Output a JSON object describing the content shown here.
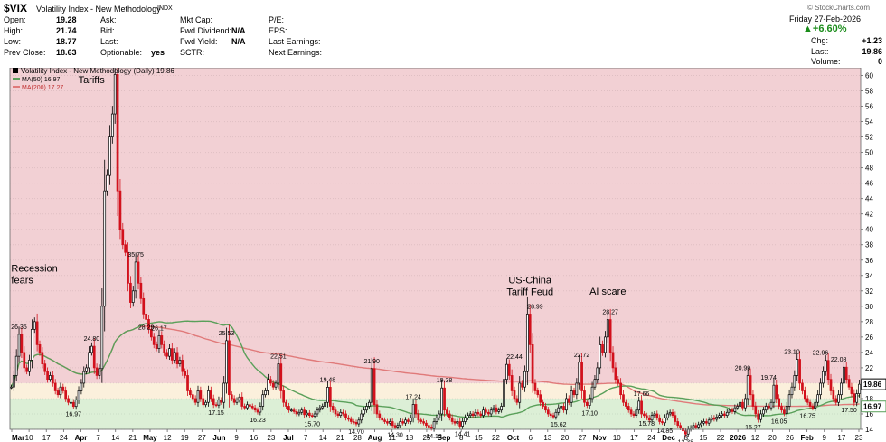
{
  "header": {
    "symbol": "$VIX",
    "name": "Volatility Index - New Methodology",
    "exchange": "INDX",
    "watermark": "© StockCharts.com",
    "date": "Friday  27-Feb-2026",
    "change_pct": "+6.60%",
    "col1": [
      [
        "Open:",
        "19.28"
      ],
      [
        "High:",
        "21.74"
      ],
      [
        "Low:",
        "18.77"
      ],
      [
        "Prev Close:",
        "18.63"
      ]
    ],
    "col2": [
      [
        "Ask:",
        ""
      ],
      [
        "Bid:",
        ""
      ],
      [
        "Last:",
        ""
      ],
      [
        "Optionable:",
        "yes"
      ]
    ],
    "col3": [
      [
        "Mkt Cap:",
        ""
      ],
      [
        "Fwd Dividend:",
        "N/A"
      ],
      [
        "Fwd Yield:",
        "N/A"
      ],
      [
        "SCTR:",
        ""
      ]
    ],
    "col4": [
      "P/E:",
      "EPS:",
      "Last Earnings:",
      "Next Earnings:"
    ],
    "col5": [
      [
        "Chg:",
        "+1.23"
      ],
      [
        "Last:",
        "19.86"
      ],
      [
        "Volume:",
        "0"
      ]
    ]
  },
  "legend": {
    "title": "Volatility Index - New Methodology (Daily) 19.86",
    "ma50": "MA(50) 16.97",
    "ma200": "MA(200) 17.27",
    "colors": {
      "ma50": "#5aa05a",
      "ma200": "#e07a7a"
    }
  },
  "chart_data": {
    "type": "candlestick",
    "title": "Volatility Index - New Methodology (Daily) 19.86",
    "ylim": [
      14,
      61
    ],
    "y_ticks": [
      14,
      16,
      18,
      20,
      22,
      24,
      26,
      28,
      30,
      32,
      34,
      36,
      38,
      40,
      42,
      44,
      46,
      48,
      50,
      52,
      54,
      56,
      58,
      60
    ],
    "last_value_label": "19.86",
    "ma50_label": "16.97",
    "zones": [
      {
        "from": 20,
        "to": 61,
        "color": "#f2d0d4"
      },
      {
        "from": 18,
        "to": 20,
        "color": "#fbf0dc"
      },
      {
        "from": 14,
        "to": 18,
        "color": "#dcefd6"
      }
    ],
    "x_labels": [
      "Mar",
      "10",
      "17",
      "24",
      "Apr",
      "7",
      "14",
      "21",
      "May",
      "12",
      "19",
      "27",
      "Jun",
      "9",
      "16",
      "23",
      "Jul",
      "7",
      "14",
      "21",
      "28",
      "Aug",
      "11",
      "18",
      "25",
      "Sep",
      "8",
      "15",
      "22",
      "Oct",
      "6",
      "13",
      "20",
      "27",
      "Nov",
      "10",
      "17",
      "24",
      "Dec",
      "8",
      "15",
      "22",
      "2026",
      "12",
      "20",
      "26",
      "Feb",
      "9",
      "17",
      "23"
    ],
    "bold_labels": [
      "Mar",
      "Apr",
      "May",
      "Jun",
      "Jul",
      "Aug",
      "Sep",
      "Oct",
      "Nov",
      "Dec",
      "2026",
      "Feb"
    ],
    "closes": [
      19.5,
      21.0,
      23.5,
      26.35,
      24.0,
      22.0,
      21.5,
      23.0,
      27.0,
      28.0,
      25.0,
      24.0,
      22.5,
      21.5,
      20.5,
      21.0,
      20.0,
      19.0,
      18.5,
      19.5,
      19.0,
      18.0,
      17.5,
      17.5,
      16.97,
      17.8,
      19.0,
      20.0,
      21.5,
      22.0,
      24.0,
      24.8,
      22.0,
      21.0,
      21.9,
      30.0,
      45.0,
      47.0,
      52.0,
      55.0,
      60.13,
      45.0,
      40.0,
      38.0,
      37.0,
      33.0,
      30.5,
      32.0,
      35.75,
      33.0,
      31.0,
      29.0,
      28.29,
      27.0,
      26.0,
      25.0,
      24.5,
      26.17,
      25.0,
      24.0,
      23.5,
      24.5,
      23.0,
      24.0,
      22.5,
      23.0,
      21.5,
      21.0,
      19.0,
      18.5,
      18.0,
      17.5,
      19.0,
      18.0,
      17.2,
      17.5,
      19.0,
      18.0,
      17.2,
      17.15,
      17.8,
      17.5,
      20.0,
      25.53,
      18.5,
      18.0,
      17.5,
      17.8,
      18.2,
      17.0,
      16.8,
      17.2,
      17.0,
      16.8,
      16.5,
      16.23,
      17.0,
      18.5,
      19.0,
      20.5,
      20.0,
      19.5,
      20.0,
      22.51,
      19.0,
      17.5,
      17.0,
      16.5,
      16.5,
      16.3,
      16.0,
      16.2,
      16.5,
      15.9,
      16.1,
      15.8,
      15.7,
      16.0,
      16.5,
      16.8,
      17.0,
      17.5,
      19.48,
      17.0,
      16.5,
      16.0,
      15.8,
      16.2,
      16.0,
      15.5,
      15.3,
      15.0,
      14.9,
      14.7,
      15.2,
      16.0,
      16.5,
      17.0,
      17.5,
      21.9,
      17.2,
      16.0,
      15.5,
      15.2,
      15.0,
      14.8,
      15.0,
      14.5,
      14.3,
      14.5,
      15.0,
      14.8,
      15.2,
      15.0,
      15.5,
      17.24,
      16.0,
      15.2,
      15.0,
      14.8,
      14.5,
      14.3,
      14.12,
      15.0,
      15.5,
      16.0,
      19.38,
      16.5,
      16.0,
      15.5,
      15.0,
      14.8,
      15.0,
      14.41,
      15.0,
      15.5,
      15.8,
      16.0,
      15.8,
      16.2,
      16.0,
      15.8,
      16.5,
      16.2,
      16.0,
      16.5,
      16.8,
      16.3,
      16.5,
      17.0,
      20.5,
      22.44,
      21.0,
      19.0,
      18.0,
      17.5,
      20.0,
      19.5,
      21.5,
      28.99,
      25.0,
      20.0,
      19.0,
      18.5,
      17.5,
      17.0,
      16.5,
      16.0,
      15.8,
      15.62,
      16.2,
      16.8,
      17.0,
      16.5,
      18.0,
      17.5,
      19.0,
      18.5,
      20.0,
      22.72,
      19.0,
      17.5,
      17.1,
      18.0,
      19.5,
      20.5,
      22.0,
      25.0,
      24.0,
      26.0,
      28.27,
      24.0,
      22.0,
      20.5,
      20.0,
      18.5,
      17.5,
      17.0,
      16.5,
      16.0,
      15.8,
      16.5,
      17.66,
      16.0,
      15.78,
      15.5,
      15.2,
      15.8,
      16.0,
      15.5,
      15.0,
      14.85,
      15.5,
      16.0,
      16.2,
      15.8,
      15.0,
      14.5,
      14.2,
      13.8,
      13.38,
      14.0,
      14.2,
      14.5,
      14.3,
      14.6,
      14.8,
      15.0,
      14.8,
      15.2,
      15.5,
      15.3,
      15.6,
      15.8,
      16.0,
      15.8,
      16.2,
      16.5,
      16.3,
      16.8,
      17.0,
      17.5,
      16.8,
      18.0,
      20.99,
      18.5,
      17.0,
      16.0,
      15.27,
      16.0,
      16.5,
      17.0,
      16.8,
      17.5,
      19.74,
      18.0,
      17.0,
      16.5,
      16.05,
      17.0,
      18.5,
      19.5,
      21.0,
      23.1,
      20.0,
      19.0,
      18.0,
      17.5,
      17.0,
      16.75,
      17.5,
      18.5,
      20.0,
      21.5,
      22.96,
      20.5,
      19.0,
      18.0,
      17.5,
      18.5,
      20.0,
      22.08,
      20.5,
      19.5,
      18.63,
      17.5,
      18.63,
      19.86
    ],
    "annotations": [
      {
        "text": "26.35",
        "i": 3,
        "v": 26.35,
        "pos": "top"
      },
      {
        "text": "16.97",
        "i": 24,
        "v": 16.97,
        "pos": "bottom"
      },
      {
        "text": "24.80",
        "i": 31,
        "v": 24.8,
        "pos": "top"
      },
      {
        "text": "35.75",
        "i": 48,
        "v": 35.75,
        "pos": "top"
      },
      {
        "text": "28.29",
        "i": 52,
        "v": 28.29,
        "pos": "bottom"
      },
      {
        "text": "26.17",
        "i": 57,
        "v": 26.17,
        "pos": "top"
      },
      {
        "text": "17.15",
        "i": 79,
        "v": 17.15,
        "pos": "bottom"
      },
      {
        "text": "25.53",
        "i": 83,
        "v": 25.53,
        "pos": "top"
      },
      {
        "text": "16.23",
        "i": 95,
        "v": 16.23,
        "pos": "bottom"
      },
      {
        "text": "22.51",
        "i": 103,
        "v": 22.51,
        "pos": "top"
      },
      {
        "text": "15.70",
        "i": 116,
        "v": 15.7,
        "pos": "bottom"
      },
      {
        "text": "19.48",
        "i": 122,
        "v": 19.48,
        "pos": "top"
      },
      {
        "text": "14.70",
        "i": 133,
        "v": 14.7,
        "pos": "bottom"
      },
      {
        "text": "21.90",
        "i": 139,
        "v": 21.9,
        "pos": "top"
      },
      {
        "text": "14.30",
        "i": 148,
        "v": 14.3,
        "pos": "bottom"
      },
      {
        "text": "17.24",
        "i": 155,
        "v": 17.24,
        "pos": "top"
      },
      {
        "text": "14.12",
        "i": 163,
        "v": 14.12,
        "pos": "bottom"
      },
      {
        "text": "19.38",
        "i": 167,
        "v": 19.38,
        "pos": "top"
      },
      {
        "text": "14.41",
        "i": 174,
        "v": 14.41,
        "pos": "bottom"
      },
      {
        "text": "22.44",
        "i": 194,
        "v": 22.44,
        "pos": "top"
      },
      {
        "text": "28.99",
        "i": 202,
        "v": 28.99,
        "pos": "top"
      },
      {
        "text": "15.62",
        "i": 211,
        "v": 15.62,
        "pos": "bottom"
      },
      {
        "text": "22.72",
        "i": 220,
        "v": 22.72,
        "pos": "top"
      },
      {
        "text": "17.10",
        "i": 223,
        "v": 17.1,
        "pos": "bottom"
      },
      {
        "text": "28.27",
        "i": 231,
        "v": 28.27,
        "pos": "top"
      },
      {
        "text": "17.66",
        "i": 243,
        "v": 17.66,
        "pos": "top"
      },
      {
        "text": "15.78",
        "i": 245,
        "v": 15.78,
        "pos": "bottom"
      },
      {
        "text": "14.85",
        "i": 252,
        "v": 14.85,
        "pos": "bottom"
      },
      {
        "text": "13.38",
        "i": 260,
        "v": 13.38,
        "pos": "bottom"
      },
      {
        "text": "20.99",
        "i": 282,
        "v": 20.99,
        "pos": "top"
      },
      {
        "text": "15.27",
        "i": 286,
        "v": 15.27,
        "pos": "bottom"
      },
      {
        "text": "19.74",
        "i": 292,
        "v": 19.74,
        "pos": "top"
      },
      {
        "text": "16.05",
        "i": 296,
        "v": 16.05,
        "pos": "bottom"
      },
      {
        "text": "23.10",
        "i": 301,
        "v": 23.1,
        "pos": "top"
      },
      {
        "text": "16.75",
        "i": 307,
        "v": 16.75,
        "pos": "bottom"
      },
      {
        "text": "22.96",
        "i": 312,
        "v": 22.96,
        "pos": "top"
      },
      {
        "text": "22.08",
        "i": 319,
        "v": 22.08,
        "pos": "top"
      },
      {
        "text": "17.50",
        "i": 323,
        "v": 17.5,
        "pos": "bottom"
      }
    ],
    "notes": [
      {
        "lines": [
          "Tariffs"
        ],
        "i": 36,
        "v": 59.0,
        "anchor": "end"
      },
      {
        "lines": [
          "Recession",
          "fears"
        ],
        "i": 0,
        "v": 34.5,
        "anchor": "start"
      },
      {
        "lines": [
          "US-China",
          "Tariff Feud"
        ],
        "i": 200,
        "v": 33.0,
        "anchor": "middle"
      },
      {
        "lines": [
          "AI scare"
        ],
        "i": 230,
        "v": 31.5,
        "anchor": "middle"
      }
    ]
  }
}
